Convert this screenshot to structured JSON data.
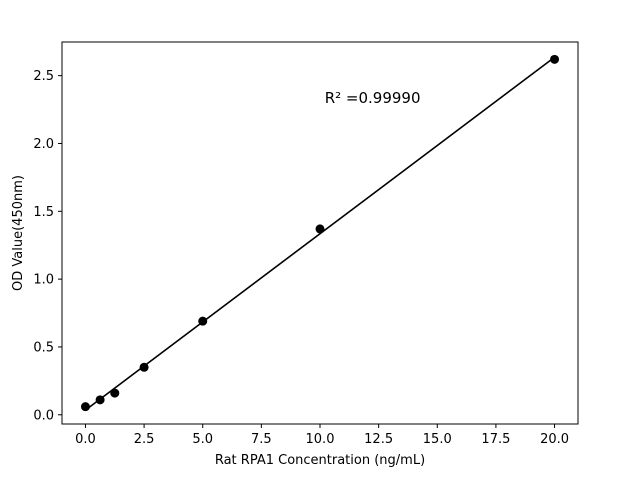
{
  "chart_data": {
    "type": "scatter",
    "title": "",
    "xlabel": "Rat RPA1 Concentration (ng/mL)",
    "ylabel": "OD Value(450nm)",
    "x": [
      0,
      0.625,
      1.25,
      2.5,
      5,
      10,
      20
    ],
    "y": [
      0.06,
      0.11,
      0.16,
      0.35,
      0.69,
      1.37,
      2.62
    ],
    "fit": "linear",
    "annotation": "R² =0.99990",
    "annotation_xy": [
      10.2,
      2.3
    ],
    "xticks": [
      0.0,
      2.5,
      5.0,
      7.5,
      10.0,
      12.5,
      15.0,
      17.5,
      20.0
    ],
    "yticks": [
      0.0,
      0.5,
      1.0,
      1.5,
      2.0,
      2.5
    ],
    "xlim": [
      -1,
      21
    ],
    "ylim": [
      -0.068,
      2.748
    ],
    "grid": false,
    "legend": "none",
    "marker_color": "#000000",
    "line_color": "#000000",
    "background": "#ffffff"
  }
}
